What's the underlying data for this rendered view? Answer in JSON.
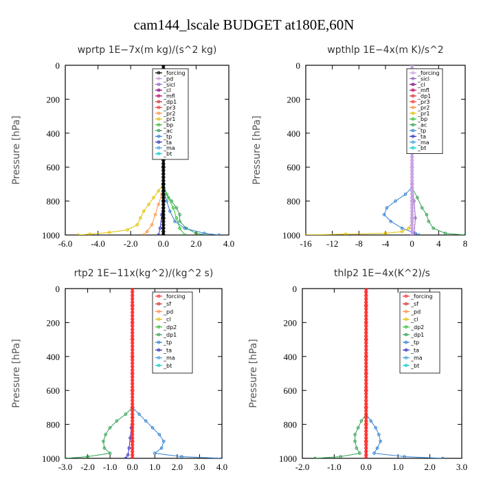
{
  "title": "cam144_lscale  BUDGET at180E,60N",
  "chart_data": [
    {
      "type": "line",
      "title": "wprtp   1E−7x(m kg)/(s^2 kg)",
      "ylabel": "Pressure [hPa]",
      "xlim": [
        -6,
        4
      ],
      "ylim": [
        0,
        1000
      ],
      "xticks": [
        "-6.0",
        "-4.0",
        "-2.0",
        "0.0",
        "2.0",
        "4.0"
      ],
      "xtick_values": [
        -6,
        -4,
        -2,
        0,
        2,
        4
      ],
      "yticks": [
        "0",
        "200",
        "400",
        "600",
        "800",
        "1000"
      ],
      "ytick_values": [
        0,
        200,
        400,
        600,
        800,
        1000
      ],
      "legend": [
        "_forcing",
        "_pd",
        "_sicl",
        "_cl",
        "_mfl",
        "_dp1",
        "_pr3",
        "_pr2",
        "_pr1",
        "_bp",
        "_ac",
        "_tp",
        "_ta",
        "_ma",
        "_bt"
      ],
      "legend_colors": [
        "#000000",
        "#c8a0e0",
        "#9060c0",
        "#800080",
        "#c00060",
        "#d03030",
        "#ff3030",
        "#ff9040",
        "#e0c000",
        "#30c030",
        "#30a050",
        "#3080d0",
        "#3030c0",
        "#40a0e0",
        "#00d0d0"
      ],
      "series": [
        {
          "name": "_pr1",
          "color": "#e0c000",
          "p": [
            700,
            740,
            780,
            820,
            860,
            900,
            940,
            970,
            985,
            995,
            1000
          ],
          "values": [
            0,
            -0.3,
            -0.6,
            -0.9,
            -1.2,
            -1.4,
            -1.6,
            -2.2,
            -3.3,
            -4.5,
            -5.2
          ]
        },
        {
          "name": "_pr2",
          "color": "#ff9040",
          "p": [
            700,
            760,
            820,
            880,
            940,
            980,
            1000
          ],
          "values": [
            0,
            -0.1,
            -0.3,
            -0.5,
            -0.7,
            -1.0,
            -1.2
          ]
        },
        {
          "name": "_ac",
          "color": "#30a050",
          "p": [
            700,
            760,
            800,
            840,
            880,
            920,
            960,
            990,
            1000
          ],
          "values": [
            0,
            0.2,
            0.5,
            0.8,
            1.0,
            1.0,
            1.4,
            2.0,
            2.6
          ]
        },
        {
          "name": "_bp",
          "color": "#30c030",
          "p": [
            720,
            780,
            840,
            900,
            960,
            1000
          ],
          "values": [
            0,
            0.3,
            0.6,
            0.8,
            1.0,
            1.3
          ]
        },
        {
          "name": "_tp",
          "color": "#3080d0",
          "p": [
            740,
            800,
            860,
            920,
            960,
            990,
            1000
          ],
          "values": [
            0,
            0.2,
            0.4,
            0.7,
            1.3,
            2.5,
            3.4
          ]
        },
        {
          "name": "_ta",
          "color": "#3030c0",
          "p": [
            800,
            880,
            960,
            1000
          ],
          "values": [
            0,
            -0.1,
            -0.2,
            -0.3
          ]
        },
        {
          "name": "_forcing",
          "color": "#000000",
          "p": [
            0,
            100,
            200,
            300,
            400,
            500,
            600,
            700,
            800,
            900,
            1000
          ],
          "values": [
            0,
            0,
            0,
            0,
            0,
            0,
            0,
            0,
            0,
            0,
            0
          ]
        }
      ]
    },
    {
      "type": "line",
      "title": "wpthlp   1E−4x(m K)/s^2",
      "ylabel": "Pressure [hPa]",
      "xlim": [
        -16,
        8
      ],
      "ylim": [
        0,
        1000
      ],
      "xticks": [
        "-16",
        "-12",
        "-8",
        "-4",
        "0",
        "4",
        "8"
      ],
      "xtick_values": [
        -16,
        -12,
        -8,
        -4,
        0,
        4,
        8
      ],
      "yticks": [
        "0",
        "200",
        "400",
        "600",
        "800",
        "1000"
      ],
      "ytick_values": [
        0,
        200,
        400,
        600,
        800,
        1000
      ],
      "legend": [
        "_forcing",
        "_sicl",
        "_cl",
        "_mfl",
        "_dp1",
        "_pr3",
        "_pr2",
        "_pr1",
        "_bp",
        "_ac",
        "_tp",
        "_ta",
        "_ma",
        "_bt"
      ],
      "legend_colors": [
        "#c8a0e0",
        "#9060c0",
        "#800080",
        "#c00060",
        "#d03030",
        "#ff3030",
        "#ff9040",
        "#e0c000",
        "#30c030",
        "#30a050",
        "#3080d0",
        "#3030c0",
        "#40a0e0",
        "#00d0d0"
      ],
      "series": [
        {
          "name": "_tp",
          "color": "#3080d0",
          "p": [
            720,
            760,
            800,
            840,
            880,
            920,
            960,
            990,
            1000
          ],
          "values": [
            0,
            -1.0,
            -2.5,
            -3.8,
            -4.2,
            -3.2,
            -1.5,
            0.5,
            1.0
          ]
        },
        {
          "name": "_ac",
          "color": "#30a050",
          "p": [
            720,
            780,
            840,
            880,
            920,
            960,
            990,
            1000
          ],
          "values": [
            0,
            0.8,
            1.5,
            2.2,
            2.5,
            3.2,
            5.0,
            8.0
          ]
        },
        {
          "name": "_pr1",
          "color": "#e0c000",
          "p": [
            920,
            960,
            980,
            990,
            995,
            1000
          ],
          "values": [
            0,
            -0.5,
            -1.5,
            -4.0,
            -10.0,
            -16.0
          ]
        },
        {
          "name": "_sicl",
          "color": "#9060c0",
          "p": [
            700,
            800,
            900,
            1000
          ],
          "values": [
            0,
            0.3,
            0.5,
            0.3
          ]
        },
        {
          "name": "_forcing",
          "color": "#c8a0e0",
          "p": [
            0,
            100,
            200,
            300,
            400,
            500,
            600,
            700,
            800,
            900,
            1000
          ],
          "values": [
            0,
            0,
            0,
            0,
            0,
            0,
            0,
            0,
            0,
            0,
            0
          ]
        }
      ]
    },
    {
      "type": "line",
      "title": "rtp2   1E−11x(kg^2)/(kg^2 s)",
      "ylabel": "Pressure [hPa]",
      "xlim": [
        -3,
        4
      ],
      "ylim": [
        0,
        1000
      ],
      "xticks": [
        "-3.0",
        "-2.0",
        "-1.0",
        "0.0",
        "1.0",
        "2.0",
        "3.0",
        "4.0"
      ],
      "xtick_values": [
        -3,
        -2,
        -1,
        0,
        1,
        2,
        3,
        4
      ],
      "yticks": [
        "0",
        "200",
        "400",
        "600",
        "800",
        "1000"
      ],
      "ytick_values": [
        0,
        200,
        400,
        600,
        800,
        1000
      ],
      "legend": [
        "_forcing",
        "_sf",
        "_pd",
        "_cl",
        "_dp2",
        "_dp1",
        "_tp",
        "_ta",
        "_ma",
        "_bt"
      ],
      "legend_colors": [
        "#ff3030",
        "#d03030",
        "#ff9040",
        "#e0c000",
        "#30c030",
        "#30a050",
        "#3080d0",
        "#3030c0",
        "#40a0e0",
        "#00d0d0"
      ],
      "series": [
        {
          "name": "_dp1",
          "color": "#30a050",
          "p": [
            700,
            740,
            780,
            820,
            860,
            900,
            940,
            970,
            990,
            1000
          ],
          "values": [
            0,
            -0.3,
            -0.7,
            -1.0,
            -1.2,
            -1.3,
            -1.25,
            -1.0,
            -2.0,
            -3.0
          ]
        },
        {
          "name": "_tp",
          "color": "#3080d0",
          "p": [
            700,
            740,
            780,
            820,
            860,
            900,
            940,
            970,
            990,
            1000
          ],
          "values": [
            0,
            0.3,
            0.6,
            0.9,
            1.2,
            1.4,
            1.3,
            1.0,
            2.2,
            4.0
          ]
        },
        {
          "name": "_ta",
          "color": "#3030c0",
          "p": [
            760,
            820,
            880,
            940,
            980,
            1000
          ],
          "values": [
            0,
            -0.05,
            -0.1,
            -0.15,
            -0.2,
            -0.3
          ]
        },
        {
          "name": "_forcing",
          "color": "#ff3030",
          "p": [
            0,
            100,
            200,
            300,
            400,
            500,
            600,
            700,
            800,
            900,
            1000
          ],
          "values": [
            0,
            0,
            0,
            0,
            0,
            0,
            0,
            0,
            0,
            0,
            0
          ]
        }
      ]
    },
    {
      "type": "line",
      "title": "thlp2   1E−4x(K^2)/s",
      "ylabel": "Pressure [hPa]",
      "xlim": [
        -2,
        3
      ],
      "ylim": [
        0,
        1000
      ],
      "xticks": [
        "-2.0",
        "-1.0",
        "0.0",
        "1.0",
        "2.0",
        "3.0"
      ],
      "xtick_values": [
        -2,
        -1,
        0,
        1,
        2,
        3
      ],
      "yticks": [
        "0",
        "200",
        "400",
        "600",
        "800",
        "1000"
      ],
      "ytick_values": [
        0,
        200,
        400,
        600,
        800,
        1000
      ],
      "legend": [
        "_forcing",
        "_sf",
        "_pd",
        "_cl",
        "_dp2",
        "_dp1",
        "_tp",
        "_ta",
        "_ma",
        "_bt"
      ],
      "legend_colors": [
        "#ff3030",
        "#d03030",
        "#ff9040",
        "#e0c000",
        "#30c030",
        "#30a050",
        "#3080d0",
        "#3030c0",
        "#40a0e0",
        "#00d0d0"
      ],
      "series": [
        {
          "name": "_dp1",
          "color": "#30a050",
          "p": [
            740,
            780,
            820,
            860,
            900,
            940,
            970,
            990,
            1000
          ],
          "values": [
            0,
            -0.15,
            -0.25,
            -0.35,
            -0.35,
            -0.3,
            -0.2,
            -0.8,
            -1.6
          ]
        },
        {
          "name": "_tp",
          "color": "#3080d0",
          "p": [
            740,
            780,
            820,
            860,
            900,
            940,
            970,
            990,
            1000
          ],
          "values": [
            0,
            0.15,
            0.3,
            0.4,
            0.45,
            0.35,
            0.25,
            1.2,
            2.4
          ]
        },
        {
          "name": "_forcing",
          "color": "#ff3030",
          "p": [
            0,
            100,
            200,
            300,
            400,
            500,
            600,
            700,
            800,
            900,
            1000
          ],
          "values": [
            0,
            0,
            0,
            0,
            0,
            0,
            0,
            0,
            0,
            0,
            0
          ]
        }
      ]
    }
  ]
}
